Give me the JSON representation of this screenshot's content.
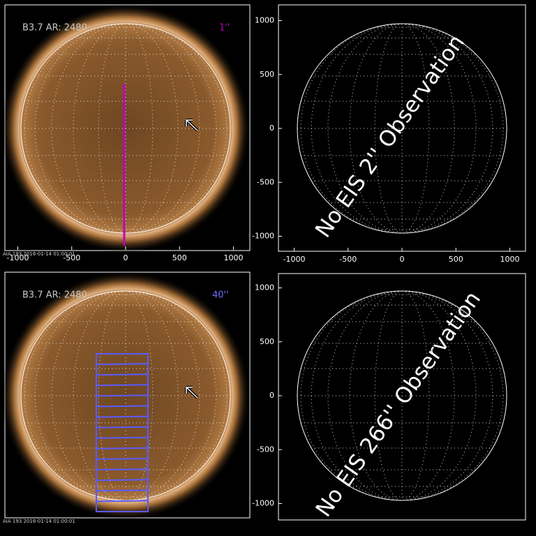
{
  "panels": [
    {
      "label": "B3.7 AR: 2480",
      "slit": "1''",
      "footer": "AIA 193 2016-01-14 01:00:01",
      "xticks": [
        -1000,
        -500,
        0,
        500,
        1000
      ]
    },
    {
      "message": "No EIS 2'' Observation",
      "xticks": [
        -1000,
        -500,
        0,
        500,
        1000
      ],
      "yticks": [
        1000,
        500,
        0,
        -500,
        -1000
      ]
    },
    {
      "label": "B3.7 AR: 2480",
      "slit": "40''",
      "footer": "AIA 193 2016-01-14 01:00:01"
    },
    {
      "message": "No EIS 266'' Observation",
      "yticks": [
        1000,
        500,
        0,
        -500,
        -1000
      ]
    }
  ]
}
